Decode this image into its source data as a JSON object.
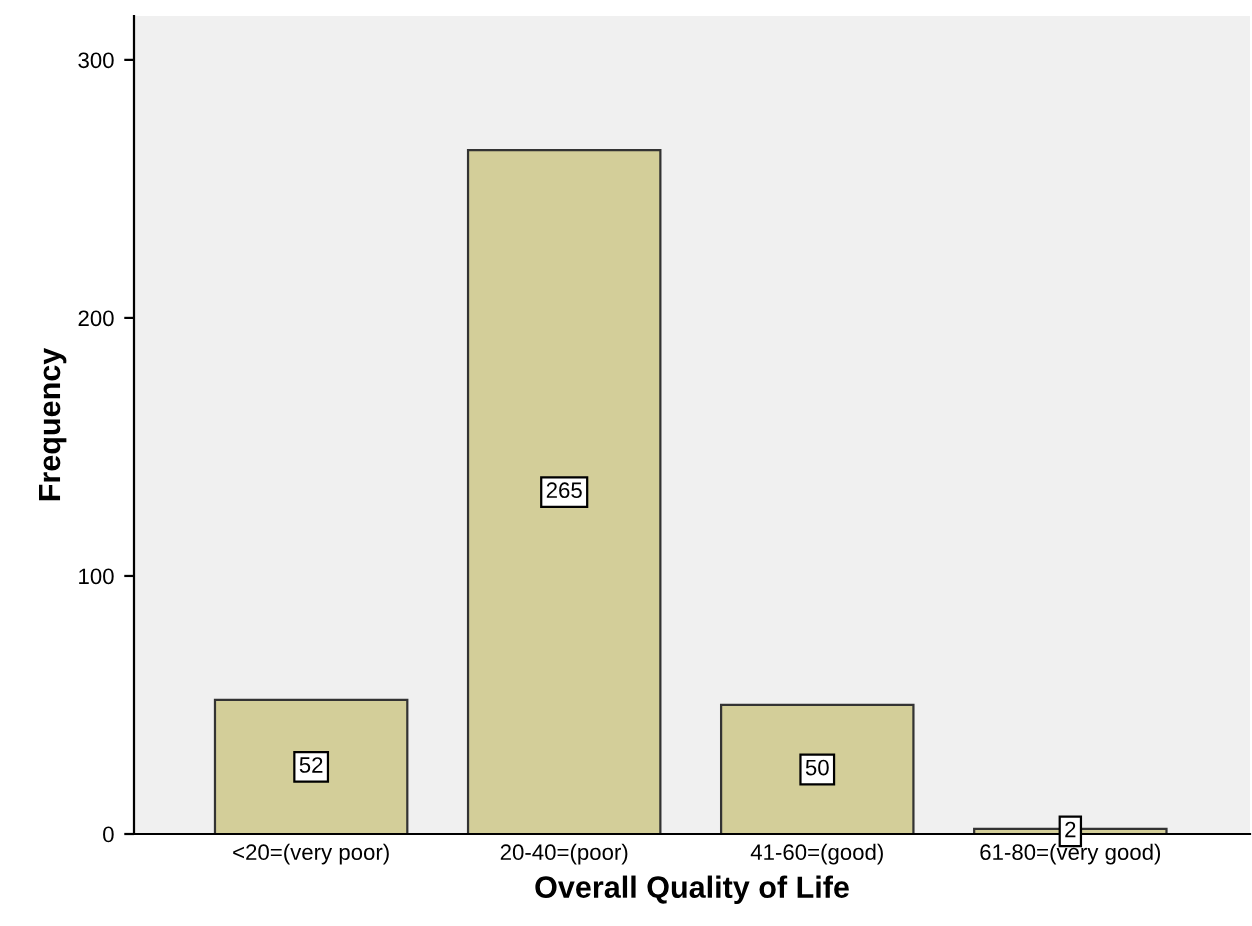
{
  "chart_data": {
    "type": "bar",
    "xlabel": "Overall Quality of Life",
    "ylabel": "Frequency",
    "categories": [
      "<20=(very poor)",
      "20-40=(poor)",
      "41-60=(good)",
      "61-80=(very good)"
    ],
    "values": [
      52,
      265,
      50,
      2
    ],
    "color": "#d3ce99",
    "ylim": [
      0,
      317
    ],
    "yticks": [
      0,
      100,
      200,
      300
    ],
    "grid": false,
    "data_labels": true
  }
}
